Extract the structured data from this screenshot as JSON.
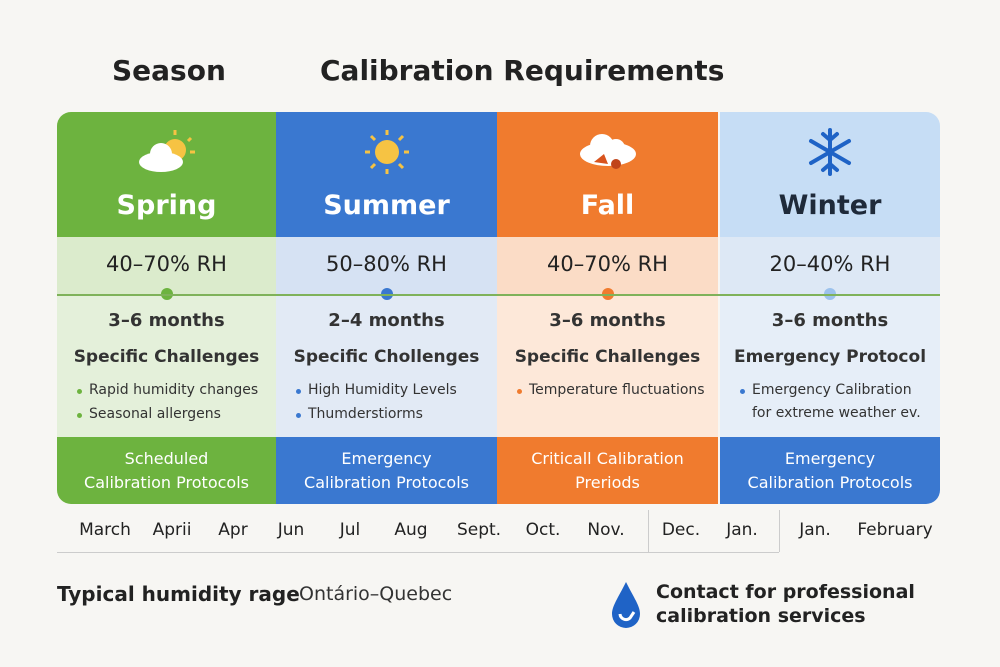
{
  "header": {
    "season": "Season",
    "requirements": "Calibration Requirements"
  },
  "columns": [
    {
      "name": "Spring",
      "humidity": "40–70% RH",
      "interval": "3–6 months",
      "section": "Specific Challenges",
      "bullets": [
        "Rapid humidity changes",
        "Seasonal allergens"
      ],
      "footer": "Scheduled Calibration Protocols"
    },
    {
      "name": "Summer",
      "humidity": "50–80% RH",
      "interval": "2–4 months",
      "section": "Specific Chollenges",
      "bullets": [
        "High Humidity Levels",
        "Thumderstiorms"
      ],
      "footer": "Emergency Calibration Protocols"
    },
    {
      "name": "Fall",
      "humidity": "40–70% RH",
      "interval": "3–6 months",
      "section": "Specific Challenges",
      "bullets": [
        "Temperature fluctuations"
      ],
      "footer": "Criticall Calibration Preriods"
    },
    {
      "name": "Winter",
      "humidity": "20–40% RH",
      "interval": "3–6 months",
      "section": "Emergency Protocol",
      "bullets": [
        "Emergency Calibration for extreme weather ev."
      ],
      "footer": "Emergency Calibration Protocols"
    }
  ],
  "months": [
    "March",
    "Aprii",
    "Apr",
    "Jun",
    "Jul",
    "Aug",
    "Sept.",
    "Oct.",
    "Nov.",
    "Dec.",
    "Jan.",
    "Jan.",
    "February"
  ],
  "footer": {
    "label": "Typical humidity rage",
    "region": "Ontário–Quebec",
    "contact": "Contact for professional calibration services"
  }
}
